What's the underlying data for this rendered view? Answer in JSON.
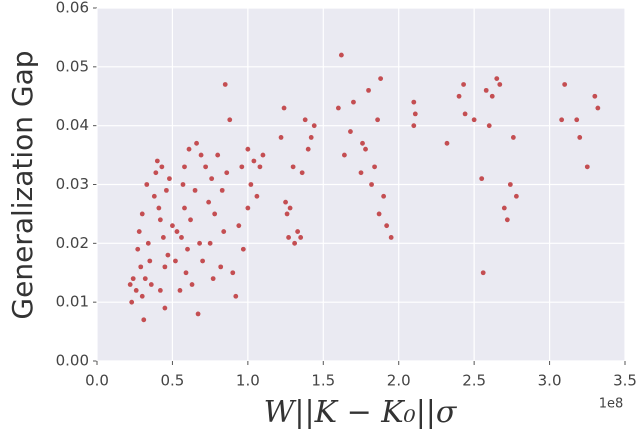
{
  "chart_data": {
    "type": "scatter",
    "ylabel": "Generalization Gap",
    "xlabel": "W||K − K₀||σ",
    "x_offset_label": "1e8",
    "color": "#c44e52",
    "grid": true,
    "xlim": [
      0,
      3.5
    ],
    "ylim": [
      0,
      0.06
    ],
    "xticks": [
      {
        "value": 0,
        "label": "0.0"
      },
      {
        "value": 0.5,
        "label": "0.5"
      },
      {
        "value": 1,
        "label": "1.0"
      },
      {
        "value": 1.5,
        "label": "1.5"
      },
      {
        "value": 2,
        "label": "2.0"
      },
      {
        "value": 2.5,
        "label": "2.5"
      },
      {
        "value": 3,
        "label": "3.0"
      },
      {
        "value": 3.5,
        "label": "3.5"
      }
    ],
    "yticks": [
      {
        "value": 0,
        "label": "0.00"
      },
      {
        "value": 0.01,
        "label": "0.01"
      },
      {
        "value": 0.02,
        "label": "0.02"
      },
      {
        "value": 0.03,
        "label": "0.03"
      },
      {
        "value": 0.04,
        "label": "0.04"
      },
      {
        "value": 0.05,
        "label": "0.05"
      },
      {
        "value": 0.06,
        "label": "0.06"
      }
    ],
    "x": [
      0.22,
      0.23,
      0.24,
      0.26,
      0.27,
      0.28,
      0.29,
      0.3,
      0.3,
      0.31,
      0.32,
      0.33,
      0.34,
      0.35,
      0.36,
      0.38,
      0.39,
      0.4,
      0.41,
      0.42,
      0.42,
      0.43,
      0.44,
      0.45,
      0.45,
      0.46,
      0.47,
      0.48,
      0.5,
      0.52,
      0.53,
      0.55,
      0.56,
      0.57,
      0.58,
      0.58,
      0.59,
      0.6,
      0.61,
      0.62,
      0.63,
      0.65,
      0.66,
      0.67,
      0.68,
      0.69,
      0.7,
      0.72,
      0.74,
      0.75,
      0.76,
      0.77,
      0.78,
      0.8,
      0.82,
      0.83,
      0.84,
      0.85,
      0.86,
      0.88,
      0.9,
      0.92,
      0.94,
      0.96,
      0.97,
      1.0,
      1.0,
      1.02,
      1.04,
      1.06,
      1.08,
      1.1,
      1.22,
      1.24,
      1.25,
      1.26,
      1.27,
      1.28,
      1.3,
      1.31,
      1.33,
      1.35,
      1.36,
      1.38,
      1.4,
      1.42,
      1.44,
      1.6,
      1.62,
      1.64,
      1.68,
      1.7,
      1.75,
      1.76,
      1.78,
      1.8,
      1.82,
      1.84,
      1.86,
      1.87,
      1.88,
      1.9,
      1.92,
      1.95,
      2.1,
      2.1,
      2.11,
      2.32,
      2.4,
      2.43,
      2.44,
      2.5,
      2.55,
      2.56,
      2.58,
      2.6,
      2.62,
      2.65,
      2.67,
      2.7,
      2.72,
      2.74,
      2.76,
      2.78,
      3.08,
      3.1,
      3.18,
      3.2,
      3.25,
      3.3,
      3.32
    ],
    "values": [
      0.013,
      0.01,
      0.014,
      0.012,
      0.019,
      0.022,
      0.016,
      0.011,
      0.025,
      0.007,
      0.014,
      0.03,
      0.02,
      0.017,
      0.013,
      0.028,
      0.032,
      0.034,
      0.026,
      0.024,
      0.012,
      0.033,
      0.021,
      0.016,
      0.009,
      0.029,
      0.018,
      0.031,
      0.023,
      0.017,
      0.022,
      0.012,
      0.021,
      0.03,
      0.033,
      0.026,
      0.015,
      0.019,
      0.036,
      0.024,
      0.013,
      0.029,
      0.037,
      0.008,
      0.02,
      0.035,
      0.017,
      0.033,
      0.027,
      0.02,
      0.031,
      0.014,
      0.025,
      0.035,
      0.016,
      0.029,
      0.022,
      0.047,
      0.032,
      0.041,
      0.015,
      0.011,
      0.023,
      0.033,
      0.019,
      0.026,
      0.036,
      0.03,
      0.034,
      0.028,
      0.033,
      0.035,
      0.038,
      0.043,
      0.027,
      0.025,
      0.021,
      0.026,
      0.033,
      0.02,
      0.022,
      0.021,
      0.032,
      0.041,
      0.036,
      0.038,
      0.04,
      0.043,
      0.052,
      0.035,
      0.039,
      0.044,
      0.032,
      0.037,
      0.036,
      0.046,
      0.03,
      0.033,
      0.041,
      0.025,
      0.048,
      0.028,
      0.023,
      0.021,
      0.044,
      0.04,
      0.042,
      0.037,
      0.045,
      0.047,
      0.042,
      0.041,
      0.031,
      0.015,
      0.046,
      0.04,
      0.045,
      0.048,
      0.047,
      0.026,
      0.024,
      0.03,
      0.038,
      0.028,
      0.041,
      0.047,
      0.041,
      0.038,
      0.033,
      0.045,
      0.043
    ]
  }
}
